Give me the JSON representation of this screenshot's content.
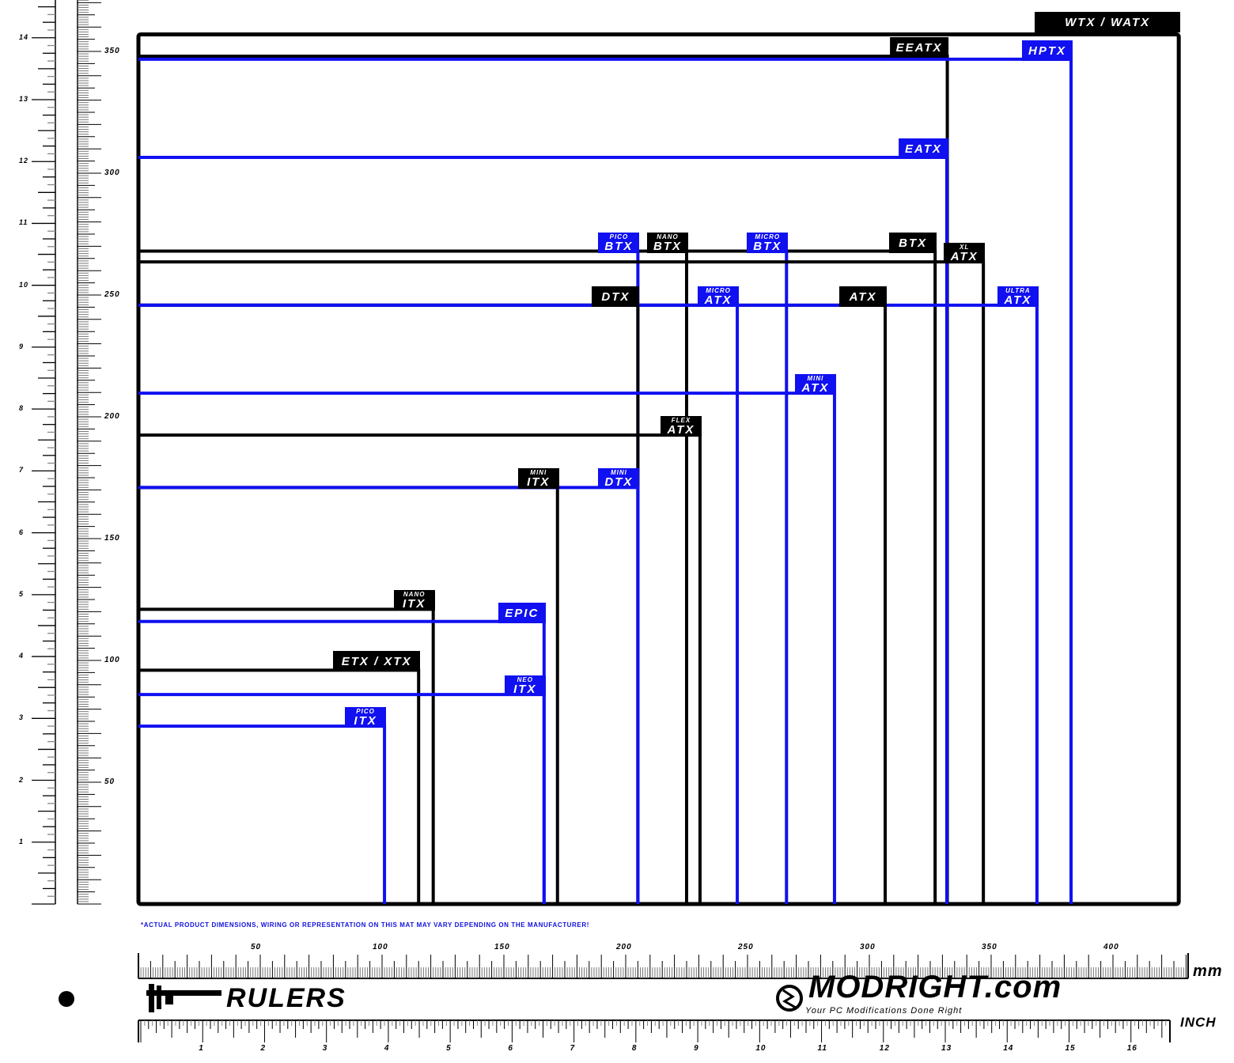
{
  "colors": {
    "blue": "#1010f0",
    "black": "#000000"
  },
  "boards": [
    {
      "small": "",
      "main": "WTX / WATX",
      "color": "black",
      "width_mm": 427,
      "height_mm": 357,
      "outer": true
    },
    {
      "small": "",
      "main": "EEATX",
      "color": "black",
      "width_mm": 332,
      "height_mm": 348
    },
    {
      "small": "",
      "main": "HPTX",
      "color": "blue",
      "width_mm": 382.8,
      "height_mm": 346.8
    },
    {
      "small": "",
      "main": "EATX",
      "color": "blue",
      "width_mm": 331.8,
      "height_mm": 306.5
    },
    {
      "small": "PICO",
      "main": "BTX",
      "color": "blue",
      "width_mm": 205,
      "height_mm": 268
    },
    {
      "small": "NANO",
      "main": "BTX",
      "color": "black",
      "width_mm": 225,
      "height_mm": 268
    },
    {
      "small": "MICRO",
      "main": "BTX",
      "color": "blue",
      "width_mm": 266,
      "height_mm": 268
    },
    {
      "small": "",
      "main": "BTX",
      "color": "black",
      "width_mm": 327,
      "height_mm": 268
    },
    {
      "small": "XL",
      "main": "ATX",
      "color": "black",
      "width_mm": 346.8,
      "height_mm": 263.6
    },
    {
      "small": "",
      "main": "DTX",
      "color": "black",
      "width_mm": 205,
      "height_mm": 245.8
    },
    {
      "small": "MICRO",
      "main": "ATX",
      "color": "blue",
      "width_mm": 245.8,
      "height_mm": 245.8
    },
    {
      "small": "",
      "main": "ATX",
      "color": "black",
      "width_mm": 306.5,
      "height_mm": 245.8
    },
    {
      "small": "ULTRA",
      "main": "ATX",
      "color": "blue",
      "width_mm": 368.8,
      "height_mm": 245.8
    },
    {
      "small": "MINI",
      "main": "ATX",
      "color": "blue",
      "width_mm": 285.7,
      "height_mm": 209.7
    },
    {
      "small": "FLEX",
      "main": "ATX",
      "color": "black",
      "width_mm": 230.5,
      "height_mm": 192.5
    },
    {
      "small": "MINI",
      "main": "ITX",
      "color": "black",
      "width_mm": 172,
      "height_mm": 171
    },
    {
      "small": "MINI",
      "main": "DTX",
      "color": "blue",
      "width_mm": 205,
      "height_mm": 171
    },
    {
      "small": "NANO",
      "main": "ITX",
      "color": "black",
      "width_mm": 121,
      "height_mm": 121
    },
    {
      "small": "",
      "main": "EPIC",
      "color": "blue",
      "width_mm": 166.5,
      "height_mm": 116
    },
    {
      "small": "",
      "main": "ETX / XTX",
      "color": "black",
      "width_mm": 115,
      "height_mm": 96
    },
    {
      "small": "NEO",
      "main": "ITX",
      "color": "blue",
      "width_mm": 166.5,
      "height_mm": 86
    },
    {
      "small": "PICO",
      "main": "ITX",
      "color": "blue",
      "width_mm": 101,
      "height_mm": 73
    }
  ],
  "footnote": "*ACTUAL PRODUCT DIMENSIONS, WIRING OR REPRESENTATION ON THIS MAT MAY VARY DEPENDING ON THE MANUFACTURER!",
  "rulers": {
    "mm_labels": [
      "50",
      "100",
      "150",
      "200",
      "250",
      "300",
      "350",
      "400"
    ],
    "vertical_mm_labels": [
      "50",
      "100",
      "150",
      "200",
      "250",
      "300",
      "350"
    ],
    "inch_labels": [
      "1",
      "2",
      "3",
      "4",
      "5",
      "6",
      "7",
      "8",
      "9",
      "10",
      "11",
      "12",
      "13",
      "14",
      "15",
      "16"
    ],
    "vertical_inch_labels": [
      "1",
      "2",
      "3",
      "4",
      "5",
      "6",
      "7",
      "8",
      "9",
      "10",
      "11",
      "12",
      "13",
      "14"
    ],
    "mm_unit": "mm",
    "inch_unit": "INCH"
  },
  "branding": {
    "rulers_title": "RULERS",
    "logo_name": "MODRIGHT.com",
    "tagline": "Your PC Modifications Done Right"
  }
}
